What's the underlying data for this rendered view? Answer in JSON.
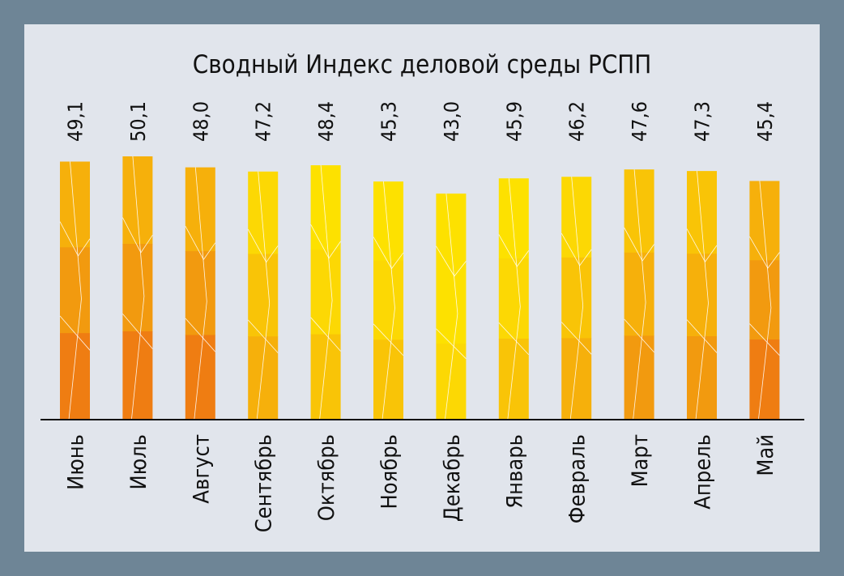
{
  "chart_data": {
    "type": "bar",
    "title": "Сводный Индекс деловой среды РСПП",
    "categories": [
      "Июнь",
      "Июль",
      "Август",
      "Сентябрь",
      "Октябрь",
      "Ноябрь",
      "Декабрь",
      "Январь",
      "Февраль",
      "Март",
      "Апрель",
      "Май"
    ],
    "values": [
      49.1,
      50.1,
      48.0,
      47.2,
      48.4,
      45.3,
      43.0,
      45.9,
      46.2,
      47.6,
      47.3,
      45.4
    ],
    "value_labels": [
      "49,1",
      "50,1",
      "48,0",
      "47,2",
      "48,4",
      "45,3",
      "43,0",
      "45,9",
      "46,2",
      "47,6",
      "47,3",
      "45,4"
    ],
    "ylim": [
      0,
      50.1
    ],
    "grid": false,
    "legend": "none",
    "colors": {
      "panel": "#e1e5ec",
      "frame": "#6e8596",
      "bar_palette": [
        "#ef7d12",
        "#f29a0f",
        "#f6b00b",
        "#f9c407",
        "#fcd804",
        "#fde100"
      ]
    }
  }
}
